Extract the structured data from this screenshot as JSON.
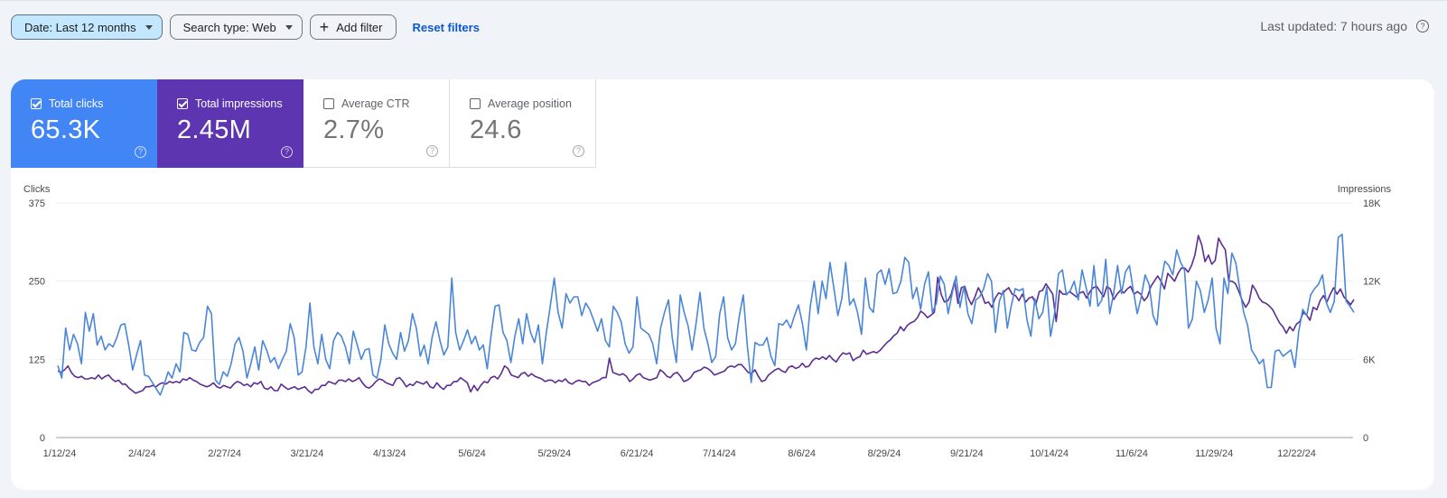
{
  "toolbar": {
    "date_filter": "Date: Last 12 months",
    "search_type_filter": "Search type: Web",
    "add_filter": "Add filter",
    "reset_filters": "Reset filters",
    "last_updated": "Last updated: 7 hours ago"
  },
  "metrics": {
    "clicks": {
      "label": "Total clicks",
      "value": "65.3K",
      "checked": true,
      "color": "#4285f4"
    },
    "impressions": {
      "label": "Total impressions",
      "value": "2.45M",
      "checked": true,
      "color": "#5e35b1"
    },
    "ctr": {
      "label": "Average CTR",
      "value": "2.7%",
      "checked": false
    },
    "position": {
      "label": "Average position",
      "value": "24.6",
      "checked": false
    }
  },
  "chart_data": {
    "type": "line",
    "x_tick_labels": [
      "1/12/24",
      "2/4/24",
      "2/27/24",
      "3/21/24",
      "4/13/24",
      "5/6/24",
      "5/29/24",
      "6/21/24",
      "7/14/24",
      "8/6/24",
      "8/29/24",
      "9/21/24",
      "10/14/24",
      "11/6/24",
      "11/29/24",
      "12/22/24"
    ],
    "left_axis": {
      "title": "Clicks",
      "ticks": [
        "0",
        "125",
        "250",
        "375"
      ],
      "range": [
        0,
        375
      ]
    },
    "right_axis": {
      "title": "Impressions",
      "ticks": [
        "0",
        "6K",
        "12K",
        "18K"
      ],
      "range": [
        0,
        18000
      ]
    },
    "x_start": "2024-01-12",
    "x_end": "2025-01-11",
    "series": [
      {
        "name": "Total clicks",
        "axis": "left",
        "color": "#4a86d8",
        "values": [
          115,
          95,
          175,
          140,
          165,
          150,
          118,
          200,
          170,
          198,
          148,
          162,
          140,
          150,
          145,
          160,
          180,
          182,
          148,
          108,
          132,
          155,
          100,
          98,
          88,
          78,
          68,
          85,
          105,
          95,
          118,
          105,
          168,
          165,
          140,
          138,
          152,
          160,
          210,
          198,
          92,
          85,
          105,
          98,
          118,
          150,
          160,
          138,
          95,
          118,
          145,
          108,
          155,
          140,
          120,
          128,
          110,
          125,
          138,
          182,
          160,
          100,
          105,
          145,
          215,
          145,
          118,
          165,
          125,
          110,
          155,
          168,
          162,
          145,
          118,
          170,
          148,
          125,
          140,
          142,
          100,
          95,
          125,
          180,
          150,
          135,
          125,
          168,
          138,
          155,
          198,
          175,
          130,
          148,
          118,
          160,
          185,
          155,
          132,
          145,
          255,
          168,
          140,
          155,
          172,
          150,
          162,
          140,
          148,
          110,
          165,
          210,
          212,
          168,
          155,
          120,
          162,
          190,
          150,
          198,
          168,
          152,
          180,
          118,
          168,
          210,
          255,
          200,
          175,
          230,
          215,
          225,
          225,
          195,
          215,
          205,
          188,
          170,
          190,
          155,
          145,
          210,
          200,
          185,
          150,
          135,
          145,
          225,
          175,
          170,
          165,
          150,
          118,
          175,
          200,
          220,
          158,
          120,
          228,
          200,
          178,
          140,
          182,
          232,
          175,
          150,
          120,
          130,
          198,
          225,
          160,
          140,
          150,
          195,
          228,
          148,
          88,
          152,
          148,
          148,
          160,
          130,
          115,
          182,
          180,
          188,
          175,
          195,
          212,
          182,
          140,
          210,
          250,
          198,
          250,
          222,
          280,
          238,
          195,
          222,
          280,
          212,
          222,
          200,
          165,
          255,
          208,
          200,
          262,
          268,
          245,
          270,
          230,
          232,
          250,
          288,
          280,
          222,
          240,
          205,
          245,
          265,
          200,
          215,
          258,
          245,
          198,
          230,
          258,
          208,
          242,
          198,
          182,
          220,
          225,
          238,
          262,
          250,
          168,
          218,
          235,
          175,
          210,
          238,
          235,
          238,
          188,
          162,
          222,
          190,
          200,
          240,
          162,
          198,
          262,
          268,
          228,
          235,
          250,
          220,
          268,
          240,
          210,
          275,
          210,
          220,
          285,
          198,
          230,
          275,
          230,
          265,
          275,
          235,
          198,
          225,
          260,
          245,
          195,
          180,
          248,
          282,
          275,
          260,
          300,
          280,
          268,
          175,
          190,
          250,
          235,
          200,
          220,
          255,
          175,
          150,
          255,
          230,
          295,
          280,
          238,
          200,
          180,
          140,
          130,
          118,
          125,
          80,
          80,
          138,
          140,
          130,
          135,
          140,
          112,
          170,
          205,
          195,
          228,
          238,
          245,
          260,
          215,
          200,
          218,
          320,
          325,
          218,
          210,
          200
        ],
        "_note_unused": null
      },
      {
        "name": "Total impressions",
        "axis": "right",
        "color": "#5c2d91",
        "values": [
          5100,
          5000,
          5200,
          5500,
          5000,
          4700,
          4600,
          4700,
          4500,
          4500,
          4600,
          4500,
          4800,
          4500,
          4700,
          4800,
          4500,
          4300,
          4400,
          4100,
          4100,
          3800,
          3600,
          3400,
          3500,
          3600,
          3900,
          3900,
          4000,
          3900,
          4100,
          4200,
          4100,
          4300,
          4200,
          4300,
          4200,
          4500,
          4400,
          4600,
          4400,
          4300,
          4100,
          4000,
          3900,
          4000,
          4200,
          3900,
          3800,
          4000,
          3900,
          3800,
          4100,
          4300,
          4200,
          4000,
          4100,
          3900,
          4200,
          4100,
          4300,
          3800,
          3700,
          3900,
          3600,
          3600,
          4100,
          3900,
          3700,
          3800,
          3900,
          3700,
          3800,
          3900,
          3600,
          3400,
          3700,
          3700,
          4000,
          4000,
          4300,
          4200,
          4100,
          4400,
          4400,
          4300,
          4500,
          4300,
          4400,
          4600,
          4200,
          3900,
          3800,
          4000,
          4300,
          4500,
          4400,
          4200,
          4100,
          4000,
          4500,
          4600,
          4300,
          3900,
          4100,
          4000,
          4300,
          4200,
          4100,
          4300,
          3900,
          3800,
          4200,
          3900,
          3700,
          4000,
          4000,
          4300,
          4300,
          4600,
          4400,
          4200,
          3500,
          4000,
          3600,
          4000,
          4300,
          4200,
          4600,
          4700,
          4500,
          4900,
          5500,
          5300,
          4800,
          4700,
          4600,
          4900,
          5000,
          4700,
          4900,
          4700,
          4600,
          4500,
          4300,
          4400,
          4400,
          4200,
          4400,
          4300,
          4500,
          4200,
          4100,
          4300,
          4400,
          4300,
          4300,
          4000,
          4200,
          4300,
          4400,
          4600,
          4600,
          6100,
          5000,
          4900,
          4800,
          4900,
          4700,
          4300,
          4500,
          4800,
          4900,
          4600,
          4500,
          4400,
          4500,
          4600,
          5200,
          5000,
          4700,
          4600,
          4900,
          5000,
          4700,
          4300,
          4400,
          4600,
          5000,
          5100,
          5200,
          5400,
          5300,
          5100,
          4800,
          4900,
          5000,
          5100,
          5400,
          5500,
          5400,
          5600,
          5600,
          5300,
          5000,
          4900,
          5200,
          4700,
          4300,
          4400,
          4800,
          5000,
          5200,
          5300,
          5100,
          5000,
          5400,
          5500,
          5300,
          5400,
          5700,
          5400,
          5500,
          5900,
          6100,
          6000,
          6200,
          6000,
          6300,
          6000,
          5800,
          6200,
          6500,
          6400,
          6500,
          5900,
          6100,
          6200,
          6700,
          6400,
          6500,
          6600,
          6500,
          6700,
          7000,
          7300,
          7500,
          7800,
          8000,
          8500,
          8200,
          8600,
          8800,
          8900,
          9200,
          9700,
          9500,
          9200,
          9400,
          9600,
          12300,
          11000,
          10400,
          10500,
          11000,
          12000,
          10300,
          11500,
          11600,
          10700,
          10200,
          10800,
          11500,
          11000,
          10300,
          10400,
          10000,
          10700,
          11100,
          11000,
          11300,
          11500,
          11000,
          10900,
          10500,
          11000,
          10400,
          10700,
          10800,
          10200,
          11200,
          11300,
          11800,
          11400,
          11000,
          8900,
          11300,
          11000,
          11000,
          11200,
          11000,
          10800,
          11100,
          11200,
          10700,
          11200,
          11500,
          11600,
          11200,
          10800,
          11600,
          11400,
          10600,
          11000,
          11300,
          11100,
          11400,
          11600,
          11000,
          11200,
          11000,
          10500,
          10800,
          11600,
          12000,
          12400,
          12000,
          11400,
          12600,
          12300,
          12000,
          12600,
          13000,
          13000,
          12700,
          13200,
          14000,
          15500,
          14800,
          13500,
          14000,
          13300,
          13600,
          15300,
          14800,
          14400,
          12000,
          12000,
          11800,
          11200,
          10500,
          10000,
          10400,
          11700,
          11300,
          10700,
          10400,
          10300,
          10100,
          9800,
          9300,
          8800,
          8500,
          8000,
          8500,
          8200,
          8700,
          8900,
          9600,
          9400,
          9000,
          10000,
          9800,
          10500,
          10900,
          10400,
          11000,
          11500,
          11000,
          11400,
          10800,
          10500,
          10200,
          10600
        ]
      }
    ],
    "grid": true,
    "legend": "none"
  }
}
